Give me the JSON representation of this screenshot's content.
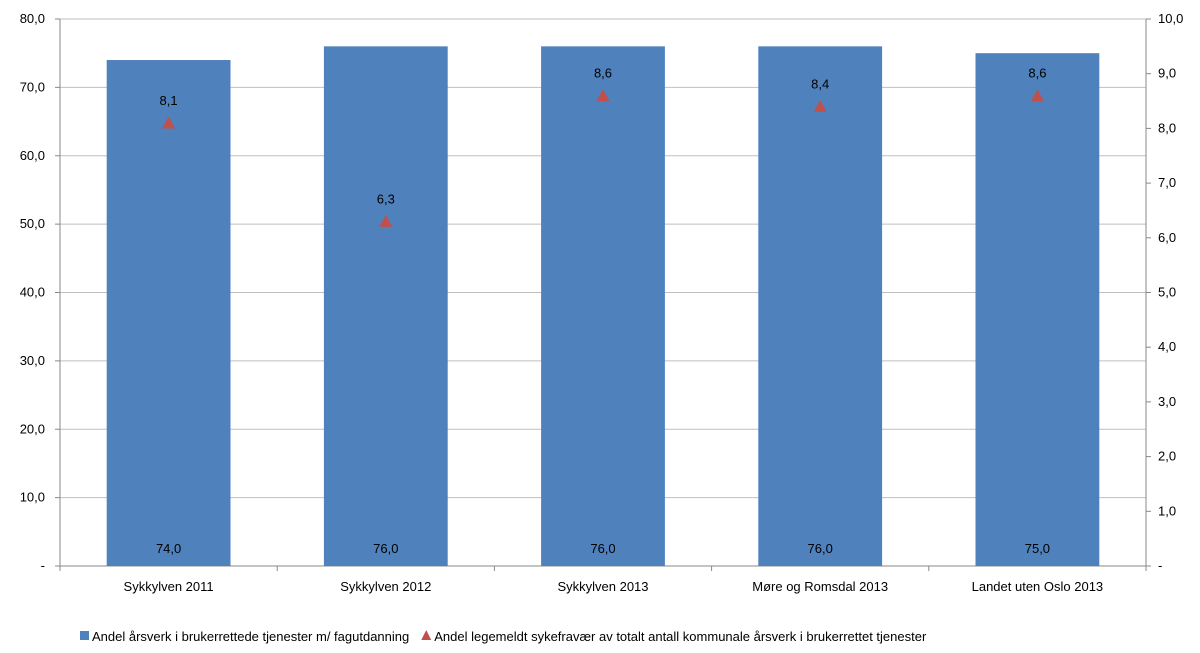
{
  "chart_data": {
    "type": "bar",
    "categories": [
      "Sykkylven 2011",
      "Sykkylven 2012",
      "Sykkylven 2013",
      "Møre og Romsdal 2013",
      "Landet uten Oslo 2013"
    ],
    "series": [
      {
        "name": "Andel årsverk i brukerrettede tjenester m/ fagutdanning",
        "kind": "bar",
        "axis": "left",
        "color": "#4F81BD",
        "values": [
          74.0,
          76.0,
          76.0,
          76.0,
          75.0
        ],
        "labels": [
          "74,0",
          "76,0",
          "76,0",
          "76,0",
          "75,0"
        ]
      },
      {
        "name": "Andel legemeldt sykefravær av totalt antall kommunale årsverk i brukerrettet tjenester",
        "kind": "marker-triangle",
        "axis": "right",
        "color": "#C0504D",
        "values": [
          8.1,
          6.3,
          8.6,
          8.4,
          8.6
        ],
        "labels": [
          "8,1",
          "6,3",
          "8,6",
          "8,4",
          "8,6"
        ]
      }
    ],
    "y_left": {
      "min": 0,
      "max": 80,
      "step": 10,
      "tick_labels": [
        "-",
        "10,0",
        "20,0",
        "30,0",
        "40,0",
        "50,0",
        "60,0",
        "70,0",
        "80,0"
      ]
    },
    "y_right": {
      "min": 0,
      "max": 10,
      "step": 1,
      "tick_labels": [
        "-",
        "1,0",
        "2,0",
        "3,0",
        "4,0",
        "5,0",
        "6,0",
        "7,0",
        "8,0",
        "9,0",
        "10,0"
      ]
    },
    "grid": true,
    "legend_position": "bottom",
    "title": "",
    "xlabel": "",
    "ylabel": ""
  }
}
